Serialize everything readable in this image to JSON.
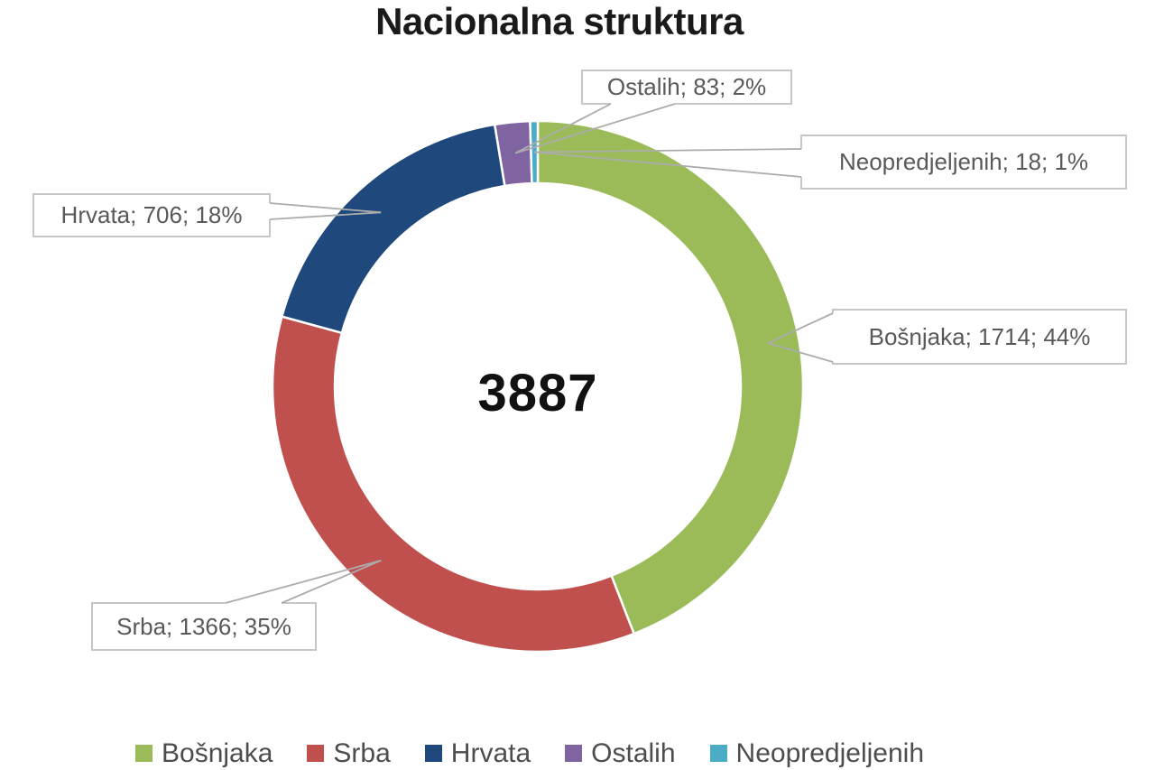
{
  "title": "Nacionalna struktura",
  "center_total": "3887",
  "chart_data": {
    "type": "pie",
    "subtype": "donut",
    "title": "Nacionalna struktura",
    "categories": [
      "Bošnjaka",
      "Srba",
      "Hrvata",
      "Ostalih",
      "Neopredjeljenih"
    ],
    "values": [
      1714,
      1366,
      706,
      83,
      18
    ],
    "percents": [
      44,
      35,
      18,
      2,
      1
    ],
    "total": 3887,
    "center_label": "3887",
    "colors": [
      "#9BBB59",
      "#C0504D",
      "#1F497D",
      "#8064A2",
      "#4BACC6"
    ],
    "slugs": [
      "bosnjaka",
      "srba",
      "hrvata",
      "ostalih",
      "neopredjeljenih"
    ],
    "data_labels": [
      "Bošnjaka; 1714; 44%",
      "Srba; 1366; 35%",
      "Hrvata; 706; 18%",
      "Ostalih; 83; 2%",
      "Neopredjeljenih; 18; 1%"
    ],
    "start_angle_deg": 0,
    "direction": "clockwise",
    "legend_position": "bottom",
    "grid": false
  },
  "legend": {
    "items": [
      "Bošnjaka",
      "Srba",
      "Hrvata",
      "Ostalih",
      "Neopredjeljenih"
    ]
  },
  "styles": {
    "label_text_color": "#595959",
    "label_border_color": "#C6C6C6",
    "leader_line_color": "#ACACAC",
    "title_color": "#1A1A1A",
    "center_text_color": "#111111",
    "legend_text_color": "#4D4D4D",
    "slice_gap_color": "#FFFFFF"
  }
}
